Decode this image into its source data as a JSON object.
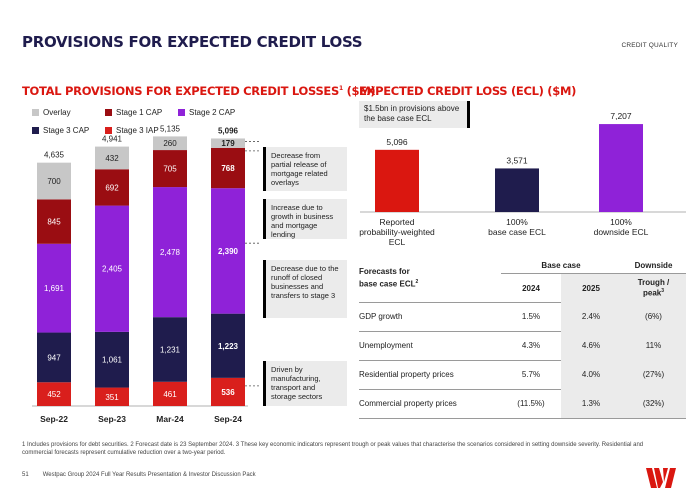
{
  "header": {
    "title": "PROVISIONS FOR EXPECTED CREDIT LOSS",
    "section": "CREDIT QUALITY"
  },
  "left_chart": {
    "title_main": "TOTAL PROVISIONS FOR EXPECTED CREDIT LOSSES",
    "title_sup": "1",
    "title_unit": " ($M)",
    "callouts": [
      "Decrease from partial release of mortgage related overlays",
      "Increase due to growth in business and mortgage lending",
      "Decrease due to the runoff of closed businesses and transfers to stage 3",
      "Driven by manufacturing, transport and storage sectors"
    ]
  },
  "right_chart": {
    "title": "EXPECTED CREDIT LOSS (ECL) ($M)",
    "note": "$1.5bn in provisions above the base case ECL"
  },
  "forecast_table": {
    "header_label_line1": "Forecasts for",
    "header_label_line2": "base case ECL",
    "header_label_sup": "2",
    "group_base": "Base case",
    "group_downside": "Downside",
    "col_2024": "2024",
    "col_2025": "2025",
    "col_trough_line1": "Trough /",
    "col_trough_line2": "peak",
    "col_trough_sup": "3",
    "rows": [
      {
        "label": "GDP growth",
        "y2024": "1.5%",
        "y2025": "2.4%",
        "trough": "(6%)"
      },
      {
        "label": "Unemployment",
        "y2024": "4.3%",
        "y2025": "4.6%",
        "trough": "11%"
      },
      {
        "label": "Residential property prices",
        "y2024": "5.7%",
        "y2025": "4.0%",
        "trough": "(27%)"
      },
      {
        "label": "Commercial property prices",
        "y2024": "(11.5%)",
        "y2025": "1.3%",
        "trough": "(32%)"
      }
    ]
  },
  "footnote": "1 Includes provisions for debt securities. 2 Forecast date is 23 September 2024. 3 These key economic indicators represent trough or peak values that characterise the scenarios considered in setting downside severity. Residential and commercial forecasts represent cumulative reduction over a two-year period.",
  "footer": {
    "page": "51",
    "text": "Westpac Group 2024 Full Year Results Presentation & Investor Discussion Pack"
  },
  "colors": {
    "overlay": "#c7c7c7",
    "stage1": "#9a0d12",
    "stage2": "#8f22d8",
    "stage3cap": "#1f1c4d",
    "stage3iap": "#d91f1c",
    "reported": "#da1710",
    "base": "#1f1c4d",
    "downside": "#8f22d8"
  },
  "chart_data": [
    {
      "type": "bar",
      "stacked": true,
      "title": "TOTAL PROVISIONS FOR EXPECTED CREDIT LOSSES ($M)",
      "categories": [
        "Sep-22",
        "Sep-23",
        "Mar-24",
        "Sep-24"
      ],
      "series": [
        {
          "name": "Stage 3 IAP",
          "values": [
            452,
            351,
            461,
            536
          ]
        },
        {
          "name": "Stage 3 CAP",
          "values": [
            947,
            1061,
            1231,
            1223
          ]
        },
        {
          "name": "Stage 2 CAP",
          "values": [
            1691,
            2405,
            2478,
            2390
          ]
        },
        {
          "name": "Stage 1 CAP",
          "values": [
            845,
            692,
            705,
            768
          ]
        },
        {
          "name": "Overlay",
          "values": [
            700,
            432,
            260,
            179
          ]
        }
      ],
      "totals": [
        4635,
        4941,
        5135,
        5096
      ],
      "legend": [
        "Overlay",
        "Stage 1 CAP",
        "Stage 2 CAP",
        "Stage 3 CAP",
        "Stage 3 IAP"
      ],
      "legend_position": "top-left",
      "grid": false
    },
    {
      "type": "bar",
      "title": "EXPECTED CREDIT LOSS (ECL) ($M)",
      "categories": [
        "Reported probability-weighted ECL",
        "100% base case ECL",
        "100% downside ECL"
      ],
      "category_lines": [
        [
          "Reported",
          "probability-weighted",
          "ECL"
        ],
        [
          "100%",
          "base case ECL"
        ],
        [
          "100%",
          "downside ECL"
        ]
      ],
      "values": [
        5096,
        3571,
        7207
      ],
      "value_labels": [
        "5,096",
        "3,571",
        "7,207"
      ],
      "grid": false
    }
  ]
}
